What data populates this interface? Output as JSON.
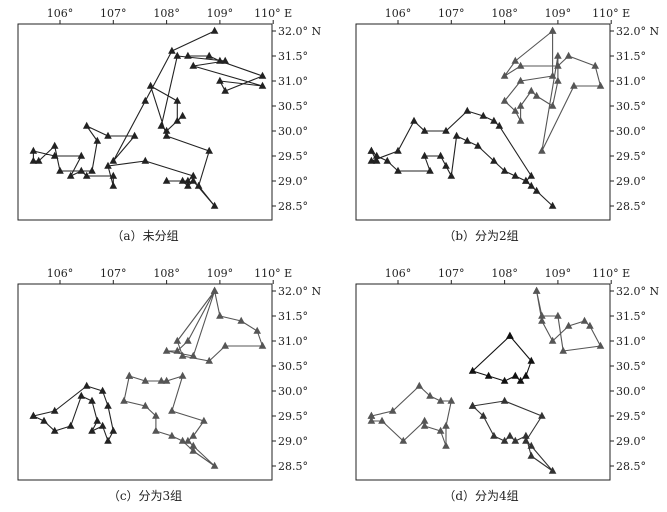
{
  "panels": [
    {
      "id": "a",
      "caption": "（a）未分组",
      "x_ticks": [
        "106°",
        "107°",
        "108°",
        "109°",
        "110° E"
      ],
      "y_ticks": [
        "32.0° N",
        "31.5°",
        "31.0°",
        "30.5°",
        "30.0°",
        "29.5°",
        "29.0°",
        "28.5°"
      ],
      "routes": [
        {
          "color": "#222222",
          "points": [
            [
              108.9,
              32.0
            ],
            [
              108.1,
              31.6
            ],
            [
              107.6,
              30.6
            ],
            [
              107.0,
              29.4
            ],
            [
              107.4,
              29.9
            ],
            [
              106.9,
              29.9
            ],
            [
              106.5,
              30.1
            ],
            [
              106.7,
              29.8
            ],
            [
              106.6,
              29.2
            ],
            [
              106.0,
              29.2
            ],
            [
              105.9,
              29.7
            ],
            [
              105.6,
              29.4
            ],
            [
              105.5,
              29.4
            ],
            [
              105.5,
              29.6
            ],
            [
              105.9,
              29.5
            ],
            [
              106.4,
              29.5
            ],
            [
              106.2,
              29.1
            ],
            [
              106.4,
              29.2
            ],
            [
              106.5,
              29.1
            ],
            [
              107.0,
              29.1
            ],
            [
              107.0,
              28.9
            ],
            [
              106.9,
              29.3
            ],
            [
              107.6,
              29.4
            ],
            [
              108.5,
              29.1
            ],
            [
              108.4,
              29.0
            ],
            [
              108.0,
              29.0
            ],
            [
              108.3,
              29.0
            ],
            [
              108.4,
              28.9
            ],
            [
              108.5,
              29.0
            ],
            [
              108.9,
              28.5
            ],
            [
              108.6,
              28.9
            ],
            [
              108.8,
              29.6
            ],
            [
              108.0,
              29.9
            ],
            [
              107.7,
              30.9
            ],
            [
              108.2,
              30.6
            ],
            [
              108.2,
              30.2
            ],
            [
              108.3,
              30.3
            ],
            [
              108.0,
              30.0
            ],
            [
              107.9,
              30.1
            ],
            [
              108.2,
              31.5
            ],
            [
              109.1,
              31.4
            ],
            [
              108.5,
              31.3
            ],
            [
              109.8,
              30.9
            ],
            [
              109.0,
              31.0
            ],
            [
              109.1,
              30.8
            ],
            [
              109.8,
              31.1
            ],
            [
              109.0,
              31.4
            ],
            [
              108.8,
              31.5
            ],
            [
              108.4,
              31.5
            ]
          ]
        }
      ]
    },
    {
      "id": "b",
      "caption": "（b）分为2组",
      "x_ticks": [
        "106°",
        "107°",
        "108°",
        "109°",
        "110° E"
      ],
      "y_ticks": [
        "32.0° N",
        "31.5°",
        "31.0°",
        "30.5°",
        "30.0°",
        "29.5°",
        "29.0°",
        "28.5°"
      ],
      "routes": [
        {
          "color": "#222222",
          "points": [
            [
              105.5,
              29.6
            ],
            [
              105.6,
              29.4
            ],
            [
              105.5,
              29.4
            ],
            [
              106.0,
              29.6
            ],
            [
              106.3,
              30.2
            ],
            [
              106.5,
              30.0
            ],
            [
              106.9,
              30.0
            ],
            [
              107.3,
              30.4
            ],
            [
              107.6,
              30.3
            ],
            [
              107.8,
              30.2
            ],
            [
              107.9,
              30.1
            ],
            [
              108.5,
              29.1
            ],
            [
              108.4,
              29.0
            ],
            [
              108.5,
              28.9
            ],
            [
              108.9,
              28.5
            ],
            [
              108.6,
              28.8
            ],
            [
              108.4,
              29.0
            ],
            [
              108.2,
              29.1
            ],
            [
              108.0,
              29.2
            ],
            [
              107.8,
              29.4
            ],
            [
              107.5,
              29.7
            ],
            [
              107.3,
              29.8
            ],
            [
              107.1,
              29.9
            ],
            [
              107.0,
              29.1
            ],
            [
              106.9,
              29.3
            ],
            [
              106.8,
              29.5
            ],
            [
              106.5,
              29.5
            ],
            [
              106.6,
              29.2
            ],
            [
              106.0,
              29.2
            ],
            [
              105.8,
              29.4
            ],
            [
              105.6,
              29.5
            ],
            [
              105.5,
              29.6
            ]
          ]
        },
        {
          "color": "#555555",
          "points": [
            [
              108.9,
              32.0
            ],
            [
              108.9,
              31.1
            ],
            [
              108.3,
              31.0
            ],
            [
              108.0,
              30.6
            ],
            [
              108.2,
              30.4
            ],
            [
              108.3,
              30.2
            ],
            [
              108.3,
              30.5
            ],
            [
              108.5,
              30.8
            ],
            [
              108.6,
              30.7
            ],
            [
              108.9,
              30.5
            ],
            [
              109.0,
              31.0
            ],
            [
              109.0,
              31.5
            ],
            [
              108.7,
              29.6
            ],
            [
              109.3,
              30.9
            ],
            [
              109.8,
              30.9
            ],
            [
              109.7,
              31.3
            ],
            [
              109.2,
              31.5
            ],
            [
              109.0,
              31.3
            ],
            [
              108.3,
              31.3
            ],
            [
              108.0,
              31.1
            ],
            [
              108.2,
              31.4
            ],
            [
              108.9,
              32.0
            ]
          ]
        }
      ]
    },
    {
      "id": "c",
      "caption": "（c）分为3组",
      "x_ticks": [
        "106°",
        "107°",
        "108°",
        "109°",
        "110° E"
      ],
      "y_ticks": [
        "32.0° N",
        "31.5°",
        "31.0°",
        "30.5°",
        "30.0°",
        "29.5°",
        "29.0°",
        "28.5°"
      ],
      "routes": [
        {
          "color": "#555555",
          "points": [
            [
              108.9,
              32.0
            ],
            [
              108.2,
              31.0
            ],
            [
              108.3,
              30.7
            ],
            [
              108.8,
              30.6
            ],
            [
              109.1,
              30.9
            ],
            [
              109.8,
              30.9
            ],
            [
              109.7,
              31.2
            ],
            [
              109.4,
              31.4
            ],
            [
              109.0,
              31.5
            ],
            [
              108.9,
              32.0
            ],
            [
              108.4,
              31.0
            ],
            [
              108.2,
              30.8
            ],
            [
              108.0,
              30.8
            ],
            [
              108.5,
              30.7
            ],
            [
              108.9,
              32.0
            ]
          ]
        },
        {
          "color": "#222222",
          "points": [
            [
              105.5,
              29.5
            ],
            [
              105.9,
              29.6
            ],
            [
              106.5,
              30.1
            ],
            [
              106.8,
              30.0
            ],
            [
              106.9,
              29.7
            ],
            [
              107.0,
              29.2
            ],
            [
              106.9,
              29.0
            ],
            [
              106.8,
              29.3
            ],
            [
              106.6,
              29.2
            ],
            [
              106.7,
              29.4
            ],
            [
              106.6,
              29.8
            ],
            [
              106.4,
              29.9
            ],
            [
              106.2,
              29.3
            ],
            [
              105.9,
              29.2
            ],
            [
              105.7,
              29.4
            ],
            [
              105.5,
              29.5
            ]
          ]
        },
        {
          "color": "#555555",
          "points": [
            [
              107.3,
              30.3
            ],
            [
              107.6,
              30.2
            ],
            [
              107.9,
              30.2
            ],
            [
              108.0,
              30.2
            ],
            [
              108.3,
              30.3
            ],
            [
              108.1,
              29.6
            ],
            [
              108.7,
              29.4
            ],
            [
              108.5,
              29.1
            ],
            [
              108.4,
              29.0
            ],
            [
              108.5,
              28.9
            ],
            [
              108.9,
              28.5
            ],
            [
              108.5,
              28.8
            ],
            [
              108.3,
              29.0
            ],
            [
              108.1,
              29.1
            ],
            [
              107.8,
              29.2
            ],
            [
              107.8,
              29.5
            ],
            [
              107.6,
              29.7
            ],
            [
              107.2,
              29.8
            ],
            [
              107.3,
              30.3
            ]
          ]
        }
      ]
    },
    {
      "id": "d",
      "caption": "（d）分为4组",
      "x_ticks": [
        "106°",
        "107°",
        "108°",
        "109°",
        "110° E"
      ],
      "y_ticks": [
        "32.0° N",
        "31.5°",
        "31.0°",
        "30.5°",
        "30.0°",
        "29.5°",
        "29.0°",
        "28.5°"
      ],
      "routes": [
        {
          "color": "#555555",
          "points": [
            [
              108.6,
              32.0
            ],
            [
              108.7,
              31.4
            ],
            [
              108.9,
              31.0
            ],
            [
              109.2,
              31.3
            ],
            [
              109.5,
              31.4
            ],
            [
              109.6,
              31.3
            ],
            [
              109.8,
              30.9
            ],
            [
              109.1,
              30.8
            ],
            [
              109.0,
              31.5
            ],
            [
              108.7,
              31.5
            ],
            [
              108.6,
              32.0
            ]
          ]
        },
        {
          "color": "#111111",
          "points": [
            [
              108.1,
              31.1
            ],
            [
              108.5,
              30.6
            ],
            [
              108.4,
              30.3
            ],
            [
              108.3,
              30.2
            ],
            [
              108.2,
              30.3
            ],
            [
              108.0,
              30.2
            ],
            [
              107.7,
              30.3
            ],
            [
              107.4,
              30.4
            ],
            [
              108.1,
              31.1
            ]
          ]
        },
        {
          "color": "#555555",
          "points": [
            [
              105.5,
              29.5
            ],
            [
              105.9,
              29.6
            ],
            [
              106.4,
              30.1
            ],
            [
              106.6,
              29.9
            ],
            [
              106.8,
              29.8
            ],
            [
              107.0,
              29.8
            ],
            [
              106.9,
              29.3
            ],
            [
              106.9,
              28.9
            ],
            [
              106.8,
              29.2
            ],
            [
              106.5,
              29.3
            ],
            [
              106.5,
              29.4
            ],
            [
              106.1,
              29.0
            ],
            [
              105.7,
              29.4
            ],
            [
              105.5,
              29.4
            ],
            [
              105.5,
              29.5
            ]
          ]
        },
        {
          "color": "#333333",
          "points": [
            [
              107.4,
              29.7
            ],
            [
              108.0,
              29.8
            ],
            [
              108.7,
              29.5
            ],
            [
              108.4,
              29.0
            ],
            [
              108.5,
              28.9
            ],
            [
              108.9,
              28.4
            ],
            [
              108.5,
              28.7
            ],
            [
              108.4,
              29.1
            ],
            [
              108.2,
              29.0
            ],
            [
              108.1,
              29.1
            ],
            [
              108.0,
              29.0
            ],
            [
              107.8,
              29.1
            ],
            [
              107.6,
              29.5
            ],
            [
              107.4,
              29.7
            ]
          ]
        }
      ]
    }
  ]
}
